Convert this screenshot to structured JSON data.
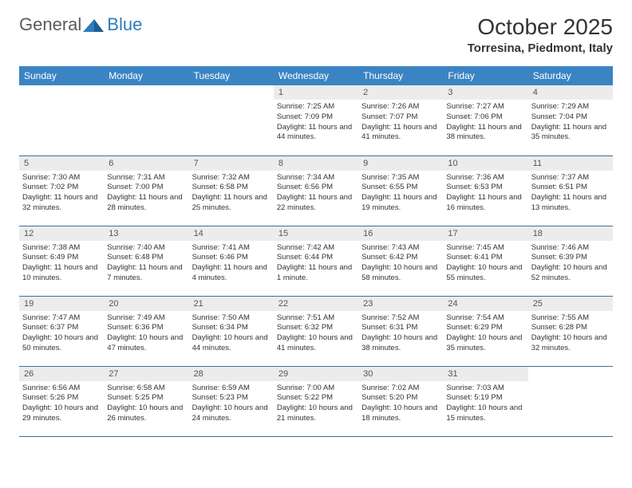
{
  "logo": {
    "text1": "General",
    "text2": "Blue"
  },
  "title": "October 2025",
  "location": "Torresina, Piedmont, Italy",
  "colors": {
    "header_bg": "#3b84c4",
    "header_text": "#ffffff",
    "daynum_bg": "#ececec",
    "daynum_text": "#555555",
    "body_text": "#333333",
    "rule": "#3b6fa0",
    "logo_gray": "#5a5a5a",
    "logo_blue": "#2f7bbf"
  },
  "day_headers": [
    "Sunday",
    "Monday",
    "Tuesday",
    "Wednesday",
    "Thursday",
    "Friday",
    "Saturday"
  ],
  "weeks": [
    [
      null,
      null,
      null,
      {
        "n": "1",
        "sr": "7:25 AM",
        "ss": "7:09 PM",
        "dl": "11 hours and 44 minutes."
      },
      {
        "n": "2",
        "sr": "7:26 AM",
        "ss": "7:07 PM",
        "dl": "11 hours and 41 minutes."
      },
      {
        "n": "3",
        "sr": "7:27 AM",
        "ss": "7:06 PM",
        "dl": "11 hours and 38 minutes."
      },
      {
        "n": "4",
        "sr": "7:29 AM",
        "ss": "7:04 PM",
        "dl": "11 hours and 35 minutes."
      }
    ],
    [
      {
        "n": "5",
        "sr": "7:30 AM",
        "ss": "7:02 PM",
        "dl": "11 hours and 32 minutes."
      },
      {
        "n": "6",
        "sr": "7:31 AM",
        "ss": "7:00 PM",
        "dl": "11 hours and 28 minutes."
      },
      {
        "n": "7",
        "sr": "7:32 AM",
        "ss": "6:58 PM",
        "dl": "11 hours and 25 minutes."
      },
      {
        "n": "8",
        "sr": "7:34 AM",
        "ss": "6:56 PM",
        "dl": "11 hours and 22 minutes."
      },
      {
        "n": "9",
        "sr": "7:35 AM",
        "ss": "6:55 PM",
        "dl": "11 hours and 19 minutes."
      },
      {
        "n": "10",
        "sr": "7:36 AM",
        "ss": "6:53 PM",
        "dl": "11 hours and 16 minutes."
      },
      {
        "n": "11",
        "sr": "7:37 AM",
        "ss": "6:51 PM",
        "dl": "11 hours and 13 minutes."
      }
    ],
    [
      {
        "n": "12",
        "sr": "7:38 AM",
        "ss": "6:49 PM",
        "dl": "11 hours and 10 minutes."
      },
      {
        "n": "13",
        "sr": "7:40 AM",
        "ss": "6:48 PM",
        "dl": "11 hours and 7 minutes."
      },
      {
        "n": "14",
        "sr": "7:41 AM",
        "ss": "6:46 PM",
        "dl": "11 hours and 4 minutes."
      },
      {
        "n": "15",
        "sr": "7:42 AM",
        "ss": "6:44 PM",
        "dl": "11 hours and 1 minute."
      },
      {
        "n": "16",
        "sr": "7:43 AM",
        "ss": "6:42 PM",
        "dl": "10 hours and 58 minutes."
      },
      {
        "n": "17",
        "sr": "7:45 AM",
        "ss": "6:41 PM",
        "dl": "10 hours and 55 minutes."
      },
      {
        "n": "18",
        "sr": "7:46 AM",
        "ss": "6:39 PM",
        "dl": "10 hours and 52 minutes."
      }
    ],
    [
      {
        "n": "19",
        "sr": "7:47 AM",
        "ss": "6:37 PM",
        "dl": "10 hours and 50 minutes."
      },
      {
        "n": "20",
        "sr": "7:49 AM",
        "ss": "6:36 PM",
        "dl": "10 hours and 47 minutes."
      },
      {
        "n": "21",
        "sr": "7:50 AM",
        "ss": "6:34 PM",
        "dl": "10 hours and 44 minutes."
      },
      {
        "n": "22",
        "sr": "7:51 AM",
        "ss": "6:32 PM",
        "dl": "10 hours and 41 minutes."
      },
      {
        "n": "23",
        "sr": "7:52 AM",
        "ss": "6:31 PM",
        "dl": "10 hours and 38 minutes."
      },
      {
        "n": "24",
        "sr": "7:54 AM",
        "ss": "6:29 PM",
        "dl": "10 hours and 35 minutes."
      },
      {
        "n": "25",
        "sr": "7:55 AM",
        "ss": "6:28 PM",
        "dl": "10 hours and 32 minutes."
      }
    ],
    [
      {
        "n": "26",
        "sr": "6:56 AM",
        "ss": "5:26 PM",
        "dl": "10 hours and 29 minutes."
      },
      {
        "n": "27",
        "sr": "6:58 AM",
        "ss": "5:25 PM",
        "dl": "10 hours and 26 minutes."
      },
      {
        "n": "28",
        "sr": "6:59 AM",
        "ss": "5:23 PM",
        "dl": "10 hours and 24 minutes."
      },
      {
        "n": "29",
        "sr": "7:00 AM",
        "ss": "5:22 PM",
        "dl": "10 hours and 21 minutes."
      },
      {
        "n": "30",
        "sr": "7:02 AM",
        "ss": "5:20 PM",
        "dl": "10 hours and 18 minutes."
      },
      {
        "n": "31",
        "sr": "7:03 AM",
        "ss": "5:19 PM",
        "dl": "10 hours and 15 minutes."
      },
      null
    ]
  ],
  "labels": {
    "sunrise": "Sunrise:",
    "sunset": "Sunset:",
    "daylight": "Daylight:"
  }
}
